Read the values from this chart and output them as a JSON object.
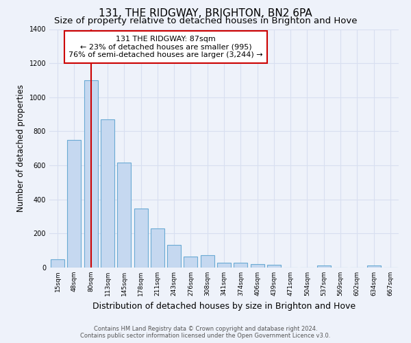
{
  "title": "131, THE RIDGWAY, BRIGHTON, BN2 6PA",
  "subtitle": "Size of property relative to detached houses in Brighton and Hove",
  "xlabel": "Distribution of detached houses by size in Brighton and Hove",
  "ylabel": "Number of detached properties",
  "categories": [
    "15sqm",
    "48sqm",
    "80sqm",
    "113sqm",
    "145sqm",
    "178sqm",
    "211sqm",
    "243sqm",
    "276sqm",
    "308sqm",
    "341sqm",
    "374sqm",
    "406sqm",
    "439sqm",
    "471sqm",
    "504sqm",
    "537sqm",
    "569sqm",
    "602sqm",
    "634sqm",
    "667sqm"
  ],
  "bar_heights": [
    50,
    750,
    1100,
    870,
    615,
    345,
    228,
    133,
    65,
    72,
    30,
    30,
    20,
    15,
    0,
    0,
    12,
    0,
    0,
    12,
    0
  ],
  "bar_color": "#c5d8f0",
  "bar_edge_color": "#6aaad4",
  "property_bar_index": 2,
  "property_line_color": "#cc0000",
  "ylim": [
    0,
    1400
  ],
  "yticks": [
    0,
    200,
    400,
    600,
    800,
    1000,
    1200,
    1400
  ],
  "annotation_title": "131 THE RIDGWAY: 87sqm",
  "annotation_line1": "← 23% of detached houses are smaller (995)",
  "annotation_line2": "76% of semi-detached houses are larger (3,244) →",
  "annotation_box_color": "#ffffff",
  "annotation_box_edge_color": "#cc0000",
  "footer1": "Contains HM Land Registry data © Crown copyright and database right 2024.",
  "footer2": "Contains public sector information licensed under the Open Government Licence v3.0.",
  "bg_color": "#eef2fa",
  "grid_color": "#d8dff0",
  "title_fontsize": 11,
  "subtitle_fontsize": 9.5,
  "xlabel_fontsize": 9,
  "ylabel_fontsize": 8.5,
  "footer_fontsize": 6,
  "tick_fontsize": 6.5
}
